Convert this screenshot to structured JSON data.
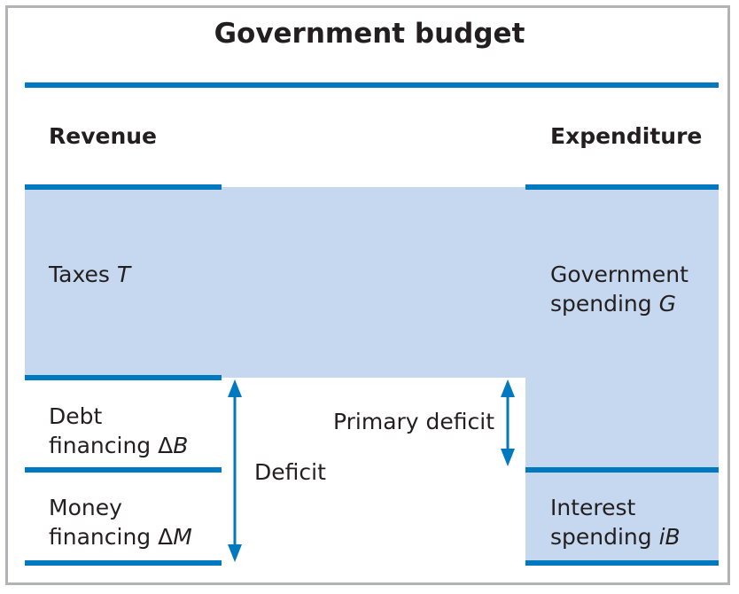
{
  "title": "Government budget",
  "revenue": {
    "heading": "Revenue",
    "taxes": {
      "text": "Taxes ",
      "var": "T"
    },
    "debt": {
      "line1": "Debt",
      "line2": "financing Δ",
      "var": "B"
    },
    "money": {
      "line1": "Money",
      "line2": "financing Δ",
      "var": "M"
    }
  },
  "expenditure": {
    "heading": "Expenditure",
    "spending": {
      "line1": "Government",
      "line2": "spending ",
      "var": "G"
    },
    "interest": {
      "line1": "Interest",
      "line2": "spending ",
      "var": "iB"
    }
  },
  "deficit_label": "Deficit",
  "primary_deficit_label": "Primary deficit",
  "colors": {
    "accent": "#0079c1",
    "fill": "#c6d8ef",
    "border": "#b1b3b6"
  }
}
